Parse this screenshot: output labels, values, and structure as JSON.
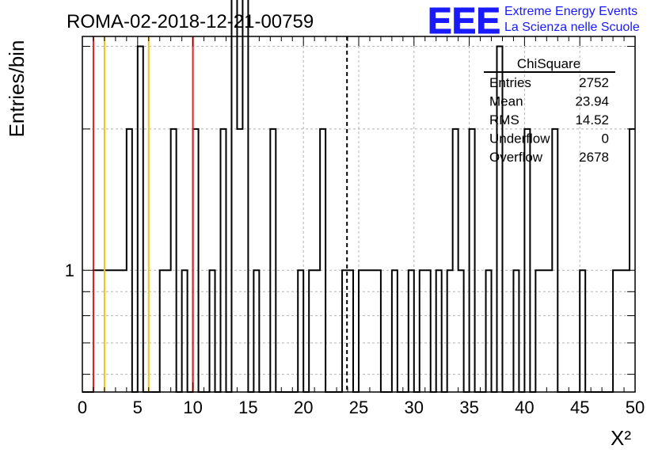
{
  "header": {
    "run_title": "ROMA-02-2018-12-21-00759",
    "logo_letters": "EEE",
    "logo_line1": "Extreme Energy Events",
    "logo_line2": "La Scienza nelle Scuole"
  },
  "colors": {
    "logo_blue": "#1a1aff",
    "red_line": "#e32222",
    "orange_line": "#f2c21a",
    "grid": "#b4b4b4",
    "histogram": "#000000"
  },
  "stats_box": {
    "name": "ChiSquare",
    "rows": [
      {
        "label": "Entries",
        "value": "2752"
      },
      {
        "label": "Mean",
        "value": "23.94"
      },
      {
        "label": "RMS",
        "value": "14.52"
      },
      {
        "label": "Underflow",
        "value": "0"
      },
      {
        "label": "Overflow",
        "value": "2678"
      }
    ]
  },
  "chart_data": {
    "type": "histogram",
    "ylabel": "Entries/bin",
    "xlabel": "X²",
    "xlim": [
      0,
      50
    ],
    "ylim_log": [
      0.55,
      3.15
    ],
    "y_scale": "log",
    "x_ticks": [
      "0",
      "5",
      "10",
      "15",
      "20",
      "25",
      "30",
      "35",
      "40",
      "45",
      "50"
    ],
    "y_tick_labels": [
      "1"
    ],
    "grid": true,
    "bin_width": 0.5,
    "bins": [
      {
        "x": 1.0,
        "count": 1
      },
      {
        "x": 1.5,
        "count": 1
      },
      {
        "x": 2.0,
        "count": 1
      },
      {
        "x": 2.5,
        "count": 1
      },
      {
        "x": 3.0,
        "count": 1
      },
      {
        "x": 3.5,
        "count": 1
      },
      {
        "x": 4.0,
        "count": 2
      },
      {
        "x": 5.0,
        "count": 3
      },
      {
        "x": 7.0,
        "count": 1
      },
      {
        "x": 7.5,
        "count": 1
      },
      {
        "x": 8.0,
        "count": 2
      },
      {
        "x": 9.0,
        "count": 1
      },
      {
        "x": 10.0,
        "count": 2
      },
      {
        "x": 11.5,
        "count": 1
      },
      {
        "x": 12.5,
        "count": 2
      },
      {
        "x": 13.5,
        "count": 4
      },
      {
        "x": 14.0,
        "count": 2
      },
      {
        "x": 14.5,
        "count": 4
      },
      {
        "x": 15.5,
        "count": 1
      },
      {
        "x": 17.0,
        "count": 2
      },
      {
        "x": 19.5,
        "count": 1
      },
      {
        "x": 20.5,
        "count": 1
      },
      {
        "x": 21.0,
        "count": 1
      },
      {
        "x": 21.5,
        "count": 2
      },
      {
        "x": 23.5,
        "count": 1
      },
      {
        "x": 24.0,
        "count": 1
      },
      {
        "x": 25.0,
        "count": 1
      },
      {
        "x": 25.5,
        "count": 1
      },
      {
        "x": 26.0,
        "count": 1
      },
      {
        "x": 26.5,
        "count": 1
      },
      {
        "x": 28.0,
        "count": 1
      },
      {
        "x": 29.5,
        "count": 1
      },
      {
        "x": 30.5,
        "count": 1
      },
      {
        "x": 31.0,
        "count": 1
      },
      {
        "x": 32.0,
        "count": 1
      },
      {
        "x": 33.0,
        "count": 1
      },
      {
        "x": 33.5,
        "count": 2
      },
      {
        "x": 34.0,
        "count": 1
      },
      {
        "x": 35.0,
        "count": 2
      },
      {
        "x": 36.5,
        "count": 1
      },
      {
        "x": 37.5,
        "count": 3
      },
      {
        "x": 39.0,
        "count": 1
      },
      {
        "x": 40.0,
        "count": 2
      },
      {
        "x": 41.0,
        "count": 1
      },
      {
        "x": 41.5,
        "count": 1
      },
      {
        "x": 42.0,
        "count": 1
      },
      {
        "x": 42.5,
        "count": 2
      },
      {
        "x": 45.0,
        "count": 1
      },
      {
        "x": 48.0,
        "count": 1
      },
      {
        "x": 48.5,
        "count": 1
      },
      {
        "x": 49.0,
        "count": 1
      },
      {
        "x": 49.5,
        "count": 2
      }
    ],
    "vertical_lines": [
      {
        "x": 1,
        "color": "red"
      },
      {
        "x": 2,
        "color": "orange"
      },
      {
        "x": 6,
        "color": "orange"
      },
      {
        "x": 10,
        "color": "red"
      },
      {
        "x": 23.94,
        "color": "black",
        "style": "dashed"
      }
    ]
  }
}
